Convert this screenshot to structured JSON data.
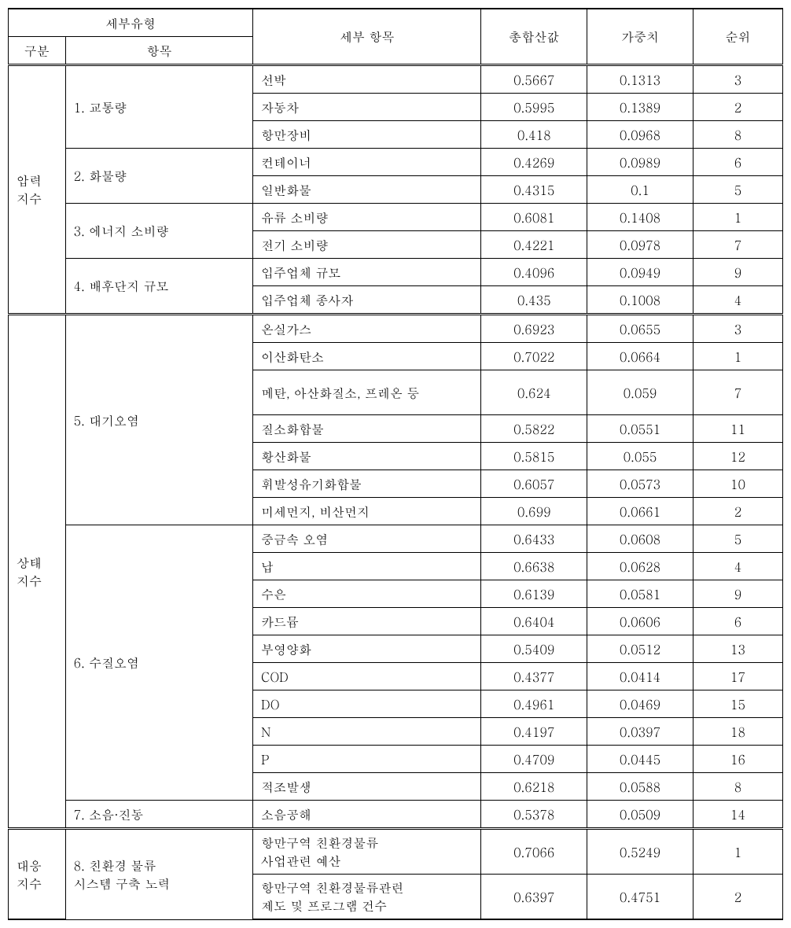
{
  "headers": {
    "sebu_yuhyeong": "세부유형",
    "gubun": "구분",
    "hangmok": "항목",
    "sebu_hangmok": "세부 항목",
    "chonghap": "총합산값",
    "gajungchi": "가중치",
    "sunwi": "순위"
  },
  "sections": [
    {
      "gubun": "압력\n지수",
      "groups": [
        {
          "label": "1. 교통량",
          "rows": [
            {
              "item": "선박",
              "total": "0.5667",
              "weight": "0.1313",
              "rank": "3"
            },
            {
              "item": "자동차",
              "total": "0.5995",
              "weight": "0.1389",
              "rank": "2"
            },
            {
              "item": "항만장비",
              "total": "0.418",
              "weight": "0.0968",
              "rank": "8"
            }
          ]
        },
        {
          "label": "2. 화물량",
          "rows": [
            {
              "item": "컨테이너",
              "total": "0.4269",
              "weight": "0.0989",
              "rank": "6"
            },
            {
              "item": "일반화물",
              "total": "0.4315",
              "weight": "0.1",
              "rank": "5"
            }
          ]
        },
        {
          "label": "3. 에너지 소비량",
          "rows": [
            {
              "item": "유류 소비량",
              "total": "0.6081",
              "weight": "0.1408",
              "rank": "1"
            },
            {
              "item": "전기 소비량",
              "total": "0.4221",
              "weight": "0.0978",
              "rank": "7"
            }
          ]
        },
        {
          "label": "4. 배후단지 규모",
          "rows": [
            {
              "item": "입주업체 규모",
              "total": "0.4096",
              "weight": "0.0949",
              "rank": "9"
            },
            {
              "item": "입주업체 종사자",
              "total": "0.435",
              "weight": "0.1008",
              "rank": "4"
            }
          ]
        }
      ]
    },
    {
      "gubun": "상태\n지수",
      "groups": [
        {
          "label": "5. 대기오염",
          "rows": [
            {
              "item": "온실가스",
              "total": "0.6923",
              "weight": "0.0655",
              "rank": "3"
            },
            {
              "item": "이산화탄소",
              "total": "0.7022",
              "weight": "0.0664",
              "rank": "1"
            },
            {
              "item": "메탄, 아산화질소, 프레온 등",
              "total": "0.624",
              "weight": "0.059",
              "rank": "7",
              "tall": true
            },
            {
              "item": "질소화합물",
              "total": "0.5822",
              "weight": "0.0551",
              "rank": "11"
            },
            {
              "item": "황산화물",
              "total": "0.5815",
              "weight": "0.055",
              "rank": "12"
            },
            {
              "item": "휘발성유기화합물",
              "total": "0.6057",
              "weight": "0.0573",
              "rank": "10"
            },
            {
              "item": "미세먼지, 비산먼지",
              "total": "0.699",
              "weight": "0.0661",
              "rank": "2"
            }
          ]
        },
        {
          "label": "6. 수질오염",
          "rows": [
            {
              "item": "중금속 오염",
              "total": "0.6433",
              "weight": "0.0608",
              "rank": "5"
            },
            {
              "item": "납",
              "total": "0.6638",
              "weight": "0.0628",
              "rank": "4"
            },
            {
              "item": "수은",
              "total": "0.6139",
              "weight": "0.0581",
              "rank": "9"
            },
            {
              "item": "카드뮴",
              "total": "0.6404",
              "weight": "0.0606",
              "rank": "6"
            },
            {
              "item": "부영양화",
              "total": "0.5409",
              "weight": "0.0512",
              "rank": "13"
            },
            {
              "item": "COD",
              "total": "0.4377",
              "weight": "0.0414",
              "rank": "17"
            },
            {
              "item": "DO",
              "total": "0.4961",
              "weight": "0.0469",
              "rank": "15"
            },
            {
              "item": "N",
              "total": "0.4197",
              "weight": "0.0397",
              "rank": "18"
            },
            {
              "item": "P",
              "total": "0.4709",
              "weight": "0.0445",
              "rank": "16"
            },
            {
              "item": "적조발생",
              "total": "0.6218",
              "weight": "0.0588",
              "rank": "8"
            }
          ]
        },
        {
          "label": "7. 소음·진동",
          "rows": [
            {
              "item": "소음공해",
              "total": "0.5378",
              "weight": "0.0509",
              "rank": "14"
            }
          ]
        }
      ]
    },
    {
      "gubun": "대응\n지수",
      "groups": [
        {
          "label": "8. 친환경 물류\n시스템 구축 노력",
          "rows": [
            {
              "item": "항만구역 친환경물류\n사업관련 예산",
              "total": "0.7066",
              "weight": "0.5249",
              "rank": "1",
              "tall": true
            },
            {
              "item": "항만구역 친환경물류관련\n제도 및 프로그램 건수",
              "total": "0.6397",
              "weight": "0.4751",
              "rank": "2",
              "tall": true
            }
          ]
        }
      ]
    }
  ]
}
